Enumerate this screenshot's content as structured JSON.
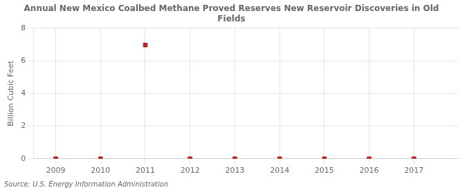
{
  "chart_data": {
    "type": "scatter",
    "title": "Annual New Mexico Coalbed Methane Proved Reserves New Reservoir Discoveries in Old\nFields",
    "y_label": "Billion Cubic Feet",
    "annotations": [
      "Source: U.S. Energy Information Administration"
    ],
    "x": [
      2009,
      2010,
      2011,
      2012,
      2013,
      2014,
      2015,
      2016,
      2017
    ],
    "values": [
      0,
      0,
      6.97,
      0,
      0,
      0,
      0,
      0,
      0
    ],
    "color": "#b22222",
    "marker": "square",
    "xlim": [
      2008.5,
      2018.0
    ],
    "xticks": [
      2009,
      2010,
      2011,
      2012,
      2013,
      2014,
      2015,
      2016,
      2017
    ],
    "ylim": [
      0,
      8
    ],
    "yticks": [
      0,
      2,
      4,
      6,
      8
    ],
    "grid": true
  }
}
